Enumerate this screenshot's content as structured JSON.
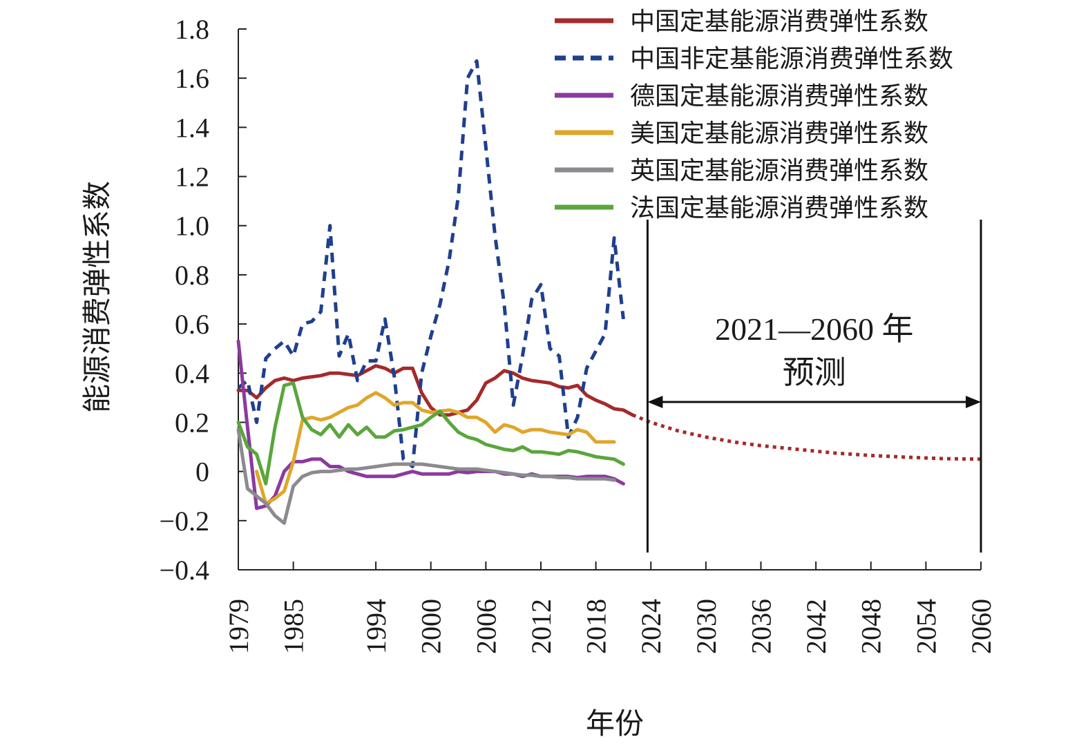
{
  "chart_data": {
    "type": "line",
    "xlabel": "年份",
    "ylabel": "能源消费弹性系数",
    "xlim": [
      1979,
      2060
    ],
    "ylim": [
      -0.4,
      1.8
    ],
    "x_ticks": [
      "1979",
      "1985",
      "1994",
      "2000",
      "2006",
      "2012",
      "2018",
      "2024",
      "2030",
      "2036",
      "2042",
      "2048",
      "2054",
      "2060"
    ],
    "y_ticks": [
      "-0.4",
      "-0.2",
      "0",
      "0.2",
      "0.4",
      "0.6",
      "0.8",
      "1.0",
      "1.2",
      "1.4",
      "1.6",
      "1.8"
    ],
    "forecast_label_line1": "2021—2060 年",
    "forecast_label_line2": "预测",
    "forecast_range": [
      2021,
      2060
    ],
    "series": [
      {
        "name": "中国定基能源消费弹性系数",
        "color": "#a52a2a",
        "style": "solid",
        "points": [
          [
            1979,
            0.33
          ],
          [
            1980,
            0.33
          ],
          [
            1981,
            0.3
          ],
          [
            1982,
            0.34
          ],
          [
            1983,
            0.37
          ],
          [
            1984,
            0.38
          ],
          [
            1985,
            0.37
          ],
          [
            1986,
            0.38
          ],
          [
            1987,
            0.385
          ],
          [
            1988,
            0.39
          ],
          [
            1989,
            0.4
          ],
          [
            1990,
            0.4
          ],
          [
            1991,
            0.395
          ],
          [
            1992,
            0.39
          ],
          [
            1993,
            0.41
          ],
          [
            1994,
            0.43
          ],
          [
            1995,
            0.42
          ],
          [
            1996,
            0.4
          ],
          [
            1997,
            0.42
          ],
          [
            1998,
            0.42
          ],
          [
            1999,
            0.32
          ],
          [
            2000,
            0.26
          ],
          [
            2001,
            0.23
          ],
          [
            2002,
            0.23
          ],
          [
            2003,
            0.24
          ],
          [
            2004,
            0.25
          ],
          [
            2005,
            0.29
          ],
          [
            2006,
            0.36
          ],
          [
            2007,
            0.38
          ],
          [
            2008,
            0.41
          ],
          [
            2009,
            0.4
          ],
          [
            2010,
            0.38
          ],
          [
            2011,
            0.37
          ],
          [
            2012,
            0.365
          ],
          [
            2013,
            0.36
          ],
          [
            2014,
            0.345
          ],
          [
            2015,
            0.34
          ],
          [
            2016,
            0.35
          ],
          [
            2017,
            0.31
          ],
          [
            2018,
            0.29
          ],
          [
            2019,
            0.275
          ],
          [
            2020,
            0.255
          ],
          [
            2021,
            0.25
          ],
          [
            2022,
            0.23
          ]
        ]
      },
      {
        "name": "中国非定基能源消费弹性系数",
        "color": "#1f3f8f",
        "style": "dashed",
        "points": [
          [
            1979,
            0.34
          ],
          [
            1980,
            0.37
          ],
          [
            1981,
            0.2
          ],
          [
            1982,
            0.46
          ],
          [
            1983,
            0.5
          ],
          [
            1984,
            0.53
          ],
          [
            1985,
            0.47
          ],
          [
            1986,
            0.6
          ],
          [
            1987,
            0.61
          ],
          [
            1988,
            0.65
          ],
          [
            1989,
            1.0
          ],
          [
            1990,
            0.47
          ],
          [
            1991,
            0.56
          ],
          [
            1992,
            0.37
          ],
          [
            1993,
            0.45
          ],
          [
            1994,
            0.45
          ],
          [
            1995,
            0.62
          ],
          [
            1996,
            0.39
          ],
          [
            1997,
            0.05
          ],
          [
            1998,
            0.02
          ],
          [
            1999,
            0.4
          ],
          [
            2000,
            0.55
          ],
          [
            2001,
            0.68
          ],
          [
            2002,
            0.86
          ],
          [
            2003,
            1.12
          ],
          [
            2004,
            1.6
          ],
          [
            2005,
            1.67
          ],
          [
            2006,
            1.32
          ],
          [
            2007,
            0.96
          ],
          [
            2008,
            0.68
          ],
          [
            2009,
            0.27
          ],
          [
            2010,
            0.47
          ],
          [
            2011,
            0.7
          ],
          [
            2012,
            0.76
          ],
          [
            2013,
            0.5
          ],
          [
            2014,
            0.47
          ],
          [
            2015,
            0.14
          ],
          [
            2016,
            0.22
          ],
          [
            2017,
            0.42
          ],
          [
            2018,
            0.49
          ],
          [
            2019,
            0.56
          ],
          [
            2020,
            0.95
          ],
          [
            2021,
            0.62
          ]
        ]
      },
      {
        "name": "德国定基能源消费弹性系数",
        "color": "#8b3a9e",
        "style": "solid",
        "points": [
          [
            1979,
            0.53
          ],
          [
            1980,
            0.18
          ],
          [
            1981,
            -0.15
          ],
          [
            1982,
            -0.14
          ],
          [
            1983,
            -0.1
          ],
          [
            1984,
            0.0
          ],
          [
            1985,
            0.04
          ],
          [
            1986,
            0.04
          ],
          [
            1987,
            0.05
          ],
          [
            1988,
            0.05
          ],
          [
            1989,
            0.02
          ],
          [
            1990,
            0.02
          ],
          [
            1991,
            0.0
          ],
          [
            1992,
            -0.01
          ],
          [
            1993,
            -0.02
          ],
          [
            1994,
            -0.02
          ],
          [
            1995,
            -0.02
          ],
          [
            1996,
            -0.02
          ],
          [
            1997,
            -0.01
          ],
          [
            1998,
            0.0
          ],
          [
            1999,
            -0.01
          ],
          [
            2000,
            -0.01
          ],
          [
            2001,
            -0.01
          ],
          [
            2002,
            -0.01
          ],
          [
            2003,
            0.0
          ],
          [
            2004,
            -0.005
          ],
          [
            2005,
            0.0
          ],
          [
            2006,
            0.0
          ],
          [
            2007,
            0.0
          ],
          [
            2008,
            -0.01
          ],
          [
            2009,
            -0.01
          ],
          [
            2010,
            -0.02
          ],
          [
            2011,
            -0.01
          ],
          [
            2012,
            -0.02
          ],
          [
            2013,
            -0.02
          ],
          [
            2014,
            -0.02
          ],
          [
            2015,
            -0.02
          ],
          [
            2016,
            -0.025
          ],
          [
            2017,
            -0.02
          ],
          [
            2018,
            -0.02
          ],
          [
            2019,
            -0.02
          ],
          [
            2020,
            -0.03
          ],
          [
            2021,
            -0.05
          ]
        ]
      },
      {
        "name": "美国定基能源消费弹性系数",
        "color": "#e0a62a",
        "style": "solid",
        "points": [
          [
            1981,
            0.0
          ],
          [
            1982,
            -0.13
          ],
          [
            1983,
            -0.11
          ],
          [
            1984,
            -0.08
          ],
          [
            1985,
            0.04
          ],
          [
            1986,
            0.21
          ],
          [
            1987,
            0.22
          ],
          [
            1988,
            0.21
          ],
          [
            1989,
            0.22
          ],
          [
            1990,
            0.24
          ],
          [
            1991,
            0.26
          ],
          [
            1992,
            0.27
          ],
          [
            1993,
            0.3
          ],
          [
            1994,
            0.32
          ],
          [
            1995,
            0.3
          ],
          [
            1996,
            0.27
          ],
          [
            1997,
            0.28
          ],
          [
            1998,
            0.28
          ],
          [
            1999,
            0.25
          ],
          [
            2000,
            0.24
          ],
          [
            2001,
            0.245
          ],
          [
            2002,
            0.25
          ],
          [
            2003,
            0.24
          ],
          [
            2004,
            0.22
          ],
          [
            2005,
            0.22
          ],
          [
            2006,
            0.2
          ],
          [
            2007,
            0.16
          ],
          [
            2008,
            0.19
          ],
          [
            2009,
            0.18
          ],
          [
            2010,
            0.16
          ],
          [
            2011,
            0.17
          ],
          [
            2012,
            0.17
          ],
          [
            2013,
            0.16
          ],
          [
            2014,
            0.155
          ],
          [
            2015,
            0.15
          ],
          [
            2016,
            0.17
          ],
          [
            2017,
            0.16
          ],
          [
            2018,
            0.12
          ],
          [
            2019,
            0.12
          ],
          [
            2020,
            0.12
          ]
        ]
      },
      {
        "name": "英国定基能源消费弹性系数",
        "color": "#8a8a8f",
        "style": "solid",
        "points": [
          [
            1979,
            0.17
          ],
          [
            1980,
            -0.07
          ],
          [
            1981,
            -0.1
          ],
          [
            1982,
            -0.13
          ],
          [
            1983,
            -0.18
          ],
          [
            1984,
            -0.21
          ],
          [
            1985,
            -0.06
          ],
          [
            1986,
            -0.02
          ],
          [
            1987,
            -0.005
          ],
          [
            1988,
            0.0
          ],
          [
            1989,
            0.0
          ],
          [
            1990,
            0.005
          ],
          [
            1991,
            0.01
          ],
          [
            1992,
            0.01
          ],
          [
            1993,
            0.015
          ],
          [
            1994,
            0.02
          ],
          [
            1995,
            0.025
          ],
          [
            1996,
            0.03
          ],
          [
            1997,
            0.03
          ],
          [
            1998,
            0.03
          ],
          [
            1999,
            0.03
          ],
          [
            2000,
            0.025
          ],
          [
            2001,
            0.02
          ],
          [
            2002,
            0.015
          ],
          [
            2003,
            0.01
          ],
          [
            2004,
            0.01
          ],
          [
            2005,
            0.01
          ],
          [
            2006,
            0.005
          ],
          [
            2007,
            0.0
          ],
          [
            2008,
            -0.005
          ],
          [
            2009,
            -0.01
          ],
          [
            2010,
            -0.015
          ],
          [
            2011,
            -0.015
          ],
          [
            2012,
            -0.02
          ],
          [
            2013,
            -0.02
          ],
          [
            2014,
            -0.025
          ],
          [
            2015,
            -0.025
          ],
          [
            2016,
            -0.03
          ],
          [
            2017,
            -0.03
          ],
          [
            2018,
            -0.03
          ],
          [
            2019,
            -0.03
          ],
          [
            2020,
            -0.035
          ]
        ]
      },
      {
        "name": "法国定基能源消费弹性系数",
        "color": "#5aa63c",
        "style": "solid",
        "points": [
          [
            1979,
            0.2
          ],
          [
            1980,
            0.1
          ],
          [
            1981,
            0.07
          ],
          [
            1982,
            -0.05
          ],
          [
            1983,
            0.18
          ],
          [
            1984,
            0.35
          ],
          [
            1985,
            0.36
          ],
          [
            1986,
            0.22
          ],
          [
            1987,
            0.17
          ],
          [
            1988,
            0.15
          ],
          [
            1989,
            0.19
          ],
          [
            1990,
            0.14
          ],
          [
            1991,
            0.19
          ],
          [
            1992,
            0.15
          ],
          [
            1993,
            0.18
          ],
          [
            1994,
            0.14
          ],
          [
            1995,
            0.14
          ],
          [
            1996,
            0.165
          ],
          [
            1997,
            0.17
          ],
          [
            1998,
            0.18
          ],
          [
            1999,
            0.19
          ],
          [
            2000,
            0.22
          ],
          [
            2001,
            0.245
          ],
          [
            2002,
            0.2
          ],
          [
            2003,
            0.16
          ],
          [
            2004,
            0.14
          ],
          [
            2005,
            0.13
          ],
          [
            2006,
            0.11
          ],
          [
            2007,
            0.1
          ],
          [
            2008,
            0.09
          ],
          [
            2009,
            0.085
          ],
          [
            2010,
            0.1
          ],
          [
            2011,
            0.08
          ],
          [
            2012,
            0.08
          ],
          [
            2013,
            0.075
          ],
          [
            2014,
            0.07
          ],
          [
            2015,
            0.085
          ],
          [
            2016,
            0.08
          ],
          [
            2017,
            0.07
          ],
          [
            2018,
            0.06
          ],
          [
            2019,
            0.055
          ],
          [
            2020,
            0.05
          ],
          [
            2021,
            0.03
          ]
        ]
      }
    ],
    "forecast_series": {
      "color": "#a52a2a",
      "style": "dotted",
      "points": [
        [
          2022,
          0.23
        ],
        [
          2024,
          0.2
        ],
        [
          2027,
          0.165
        ],
        [
          2030,
          0.14
        ],
        [
          2033,
          0.12
        ],
        [
          2036,
          0.105
        ],
        [
          2040,
          0.09
        ],
        [
          2044,
          0.075
        ],
        [
          2048,
          0.065
        ],
        [
          2052,
          0.058
        ],
        [
          2056,
          0.052
        ],
        [
          2060,
          0.05
        ]
      ]
    }
  }
}
